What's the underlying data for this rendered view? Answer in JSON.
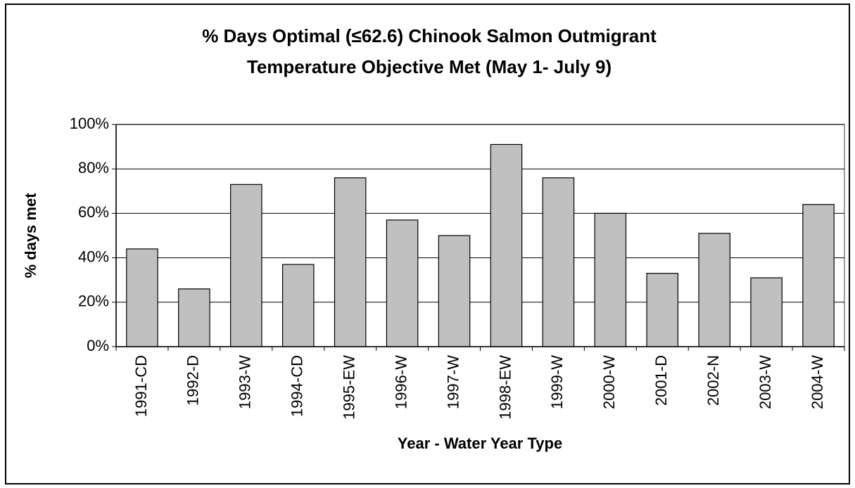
{
  "chart_data": {
    "type": "bar",
    "title": [
      "% Days Optimal (≤62.6) Chinook Salmon Outmigrant",
      "Temperature Objective Met (May 1- July 9)"
    ],
    "x_label": "Year - Water Year Type",
    "y_label": "% days met",
    "categories": [
      "1991-CD",
      "1992-D",
      "1993-W",
      "1994-CD",
      "1995-EW",
      "1996-W",
      "1997-W",
      "1998-EW",
      "1999-W",
      "2000-W",
      "2001-D",
      "2002-N",
      "2003-W",
      "2004-W"
    ],
    "values": [
      44,
      26,
      73,
      37,
      76,
      57,
      50,
      91,
      76,
      60,
      33,
      51,
      31,
      64
    ],
    "color": "#c0c0c0",
    "ylim": [
      0,
      100
    ],
    "yticks": [
      {
        "value": 0,
        "label": "0%"
      },
      {
        "value": 20,
        "label": "20%"
      },
      {
        "value": 40,
        "label": "40%"
      },
      {
        "value": 60,
        "label": "60%"
      },
      {
        "value": 80,
        "label": "80%"
      },
      {
        "value": 100,
        "label": "100%"
      }
    ],
    "grid": true
  }
}
